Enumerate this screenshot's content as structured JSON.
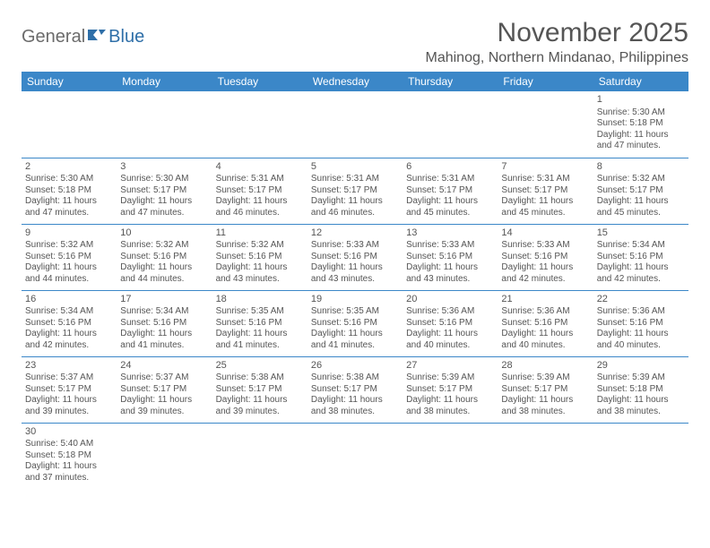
{
  "brand": {
    "part1": "General",
    "part2": "Blue"
  },
  "title": "November 2025",
  "location": "Mahinog, Northern Mindanao, Philippines",
  "colors": {
    "header_bg": "#3b87c8",
    "header_text": "#ffffff",
    "text": "#555555",
    "rule": "#3b87c8",
    "brand_gray": "#6b6b6b",
    "brand_blue": "#2f6fa8"
  },
  "dayNames": [
    "Sunday",
    "Monday",
    "Tuesday",
    "Wednesday",
    "Thursday",
    "Friday",
    "Saturday"
  ],
  "weeks": [
    [
      null,
      null,
      null,
      null,
      null,
      null,
      {
        "n": "1",
        "sunrise": "5:30 AM",
        "sunset": "5:18 PM",
        "d1": "Daylight: 11 hours",
        "d2": "and 47 minutes."
      }
    ],
    [
      {
        "n": "2",
        "sunrise": "5:30 AM",
        "sunset": "5:18 PM",
        "d1": "Daylight: 11 hours",
        "d2": "and 47 minutes."
      },
      {
        "n": "3",
        "sunrise": "5:30 AM",
        "sunset": "5:17 PM",
        "d1": "Daylight: 11 hours",
        "d2": "and 47 minutes."
      },
      {
        "n": "4",
        "sunrise": "5:31 AM",
        "sunset": "5:17 PM",
        "d1": "Daylight: 11 hours",
        "d2": "and 46 minutes."
      },
      {
        "n": "5",
        "sunrise": "5:31 AM",
        "sunset": "5:17 PM",
        "d1": "Daylight: 11 hours",
        "d2": "and 46 minutes."
      },
      {
        "n": "6",
        "sunrise": "5:31 AM",
        "sunset": "5:17 PM",
        "d1": "Daylight: 11 hours",
        "d2": "and 45 minutes."
      },
      {
        "n": "7",
        "sunrise": "5:31 AM",
        "sunset": "5:17 PM",
        "d1": "Daylight: 11 hours",
        "d2": "and 45 minutes."
      },
      {
        "n": "8",
        "sunrise": "5:32 AM",
        "sunset": "5:17 PM",
        "d1": "Daylight: 11 hours",
        "d2": "and 45 minutes."
      }
    ],
    [
      {
        "n": "9",
        "sunrise": "5:32 AM",
        "sunset": "5:16 PM",
        "d1": "Daylight: 11 hours",
        "d2": "and 44 minutes."
      },
      {
        "n": "10",
        "sunrise": "5:32 AM",
        "sunset": "5:16 PM",
        "d1": "Daylight: 11 hours",
        "d2": "and 44 minutes."
      },
      {
        "n": "11",
        "sunrise": "5:32 AM",
        "sunset": "5:16 PM",
        "d1": "Daylight: 11 hours",
        "d2": "and 43 minutes."
      },
      {
        "n": "12",
        "sunrise": "5:33 AM",
        "sunset": "5:16 PM",
        "d1": "Daylight: 11 hours",
        "d2": "and 43 minutes."
      },
      {
        "n": "13",
        "sunrise": "5:33 AM",
        "sunset": "5:16 PM",
        "d1": "Daylight: 11 hours",
        "d2": "and 43 minutes."
      },
      {
        "n": "14",
        "sunrise": "5:33 AM",
        "sunset": "5:16 PM",
        "d1": "Daylight: 11 hours",
        "d2": "and 42 minutes."
      },
      {
        "n": "15",
        "sunrise": "5:34 AM",
        "sunset": "5:16 PM",
        "d1": "Daylight: 11 hours",
        "d2": "and 42 minutes."
      }
    ],
    [
      {
        "n": "16",
        "sunrise": "5:34 AM",
        "sunset": "5:16 PM",
        "d1": "Daylight: 11 hours",
        "d2": "and 42 minutes."
      },
      {
        "n": "17",
        "sunrise": "5:34 AM",
        "sunset": "5:16 PM",
        "d1": "Daylight: 11 hours",
        "d2": "and 41 minutes."
      },
      {
        "n": "18",
        "sunrise": "5:35 AM",
        "sunset": "5:16 PM",
        "d1": "Daylight: 11 hours",
        "d2": "and 41 minutes."
      },
      {
        "n": "19",
        "sunrise": "5:35 AM",
        "sunset": "5:16 PM",
        "d1": "Daylight: 11 hours",
        "d2": "and 41 minutes."
      },
      {
        "n": "20",
        "sunrise": "5:36 AM",
        "sunset": "5:16 PM",
        "d1": "Daylight: 11 hours",
        "d2": "and 40 minutes."
      },
      {
        "n": "21",
        "sunrise": "5:36 AM",
        "sunset": "5:16 PM",
        "d1": "Daylight: 11 hours",
        "d2": "and 40 minutes."
      },
      {
        "n": "22",
        "sunrise": "5:36 AM",
        "sunset": "5:16 PM",
        "d1": "Daylight: 11 hours",
        "d2": "and 40 minutes."
      }
    ],
    [
      {
        "n": "23",
        "sunrise": "5:37 AM",
        "sunset": "5:17 PM",
        "d1": "Daylight: 11 hours",
        "d2": "and 39 minutes."
      },
      {
        "n": "24",
        "sunrise": "5:37 AM",
        "sunset": "5:17 PM",
        "d1": "Daylight: 11 hours",
        "d2": "and 39 minutes."
      },
      {
        "n": "25",
        "sunrise": "5:38 AM",
        "sunset": "5:17 PM",
        "d1": "Daylight: 11 hours",
        "d2": "and 39 minutes."
      },
      {
        "n": "26",
        "sunrise": "5:38 AM",
        "sunset": "5:17 PM",
        "d1": "Daylight: 11 hours",
        "d2": "and 38 minutes."
      },
      {
        "n": "27",
        "sunrise": "5:39 AM",
        "sunset": "5:17 PM",
        "d1": "Daylight: 11 hours",
        "d2": "and 38 minutes."
      },
      {
        "n": "28",
        "sunrise": "5:39 AM",
        "sunset": "5:17 PM",
        "d1": "Daylight: 11 hours",
        "d2": "and 38 minutes."
      },
      {
        "n": "29",
        "sunrise": "5:39 AM",
        "sunset": "5:18 PM",
        "d1": "Daylight: 11 hours",
        "d2": "and 38 minutes."
      }
    ],
    [
      {
        "n": "30",
        "sunrise": "5:40 AM",
        "sunset": "5:18 PM",
        "d1": "Daylight: 11 hours",
        "d2": "and 37 minutes."
      },
      null,
      null,
      null,
      null,
      null,
      null
    ]
  ]
}
